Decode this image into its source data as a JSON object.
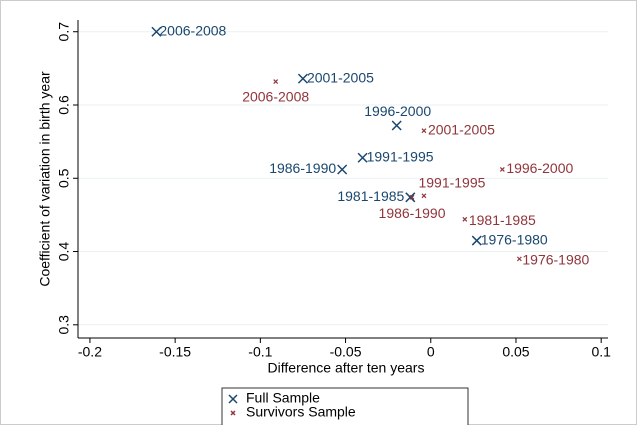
{
  "chart_data": {
    "type": "scatter",
    "x_label": "Difference after ten years",
    "y_label": "Coefficient of variation in birth year",
    "xlim": [
      -0.207,
      0.104
    ],
    "xticks": [
      -0.2,
      -0.15,
      -0.1,
      -0.05,
      {
        "value": 0,
        "label": "0"
      },
      0.05,
      0.1
    ],
    "ylim": [
      0.282,
      0.716
    ],
    "yticks": [
      0.3,
      0.4,
      0.5,
      0.6,
      0.7
    ],
    "grid": true,
    "series": [
      {
        "name": "Full Sample",
        "color": "#1a476f",
        "marker": "x",
        "x": [
          -0.161,
          -0.075,
          -0.02,
          -0.04,
          -0.052,
          -0.012,
          0.027
        ],
        "values": [
          0.7,
          0.636,
          0.572,
          0.528,
          0.512,
          0.474,
          0.415
        ],
        "labels": [
          "2006-2008",
          "2001-2005",
          "1996-2000",
          "1991-1995",
          "1986-1990",
          "1981-1985",
          "1976-1980"
        ]
      },
      {
        "name": "Survivors Sample",
        "color": "#90353b",
        "marker": "x-small",
        "x": [
          -0.091,
          -0.004,
          0.042,
          -0.004,
          -0.011,
          0.02,
          0.052
        ],
        "values": [
          0.632,
          0.565,
          0.512,
          0.476,
          0.474,
          0.444,
          0.39
        ],
        "labels": [
          "2006-2008",
          "2001-2005",
          "1996-2000",
          "1991-1995",
          "1986-1990",
          "1981-1985",
          "1976-1980"
        ]
      }
    ]
  }
}
